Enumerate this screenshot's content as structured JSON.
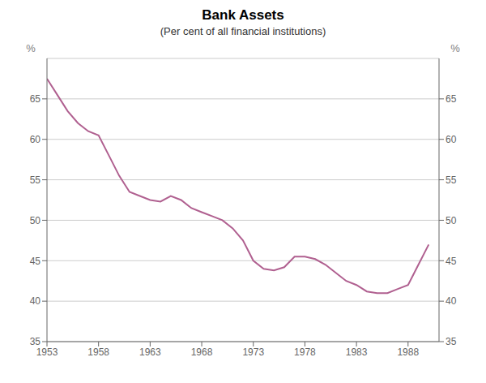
{
  "chart_data": {
    "type": "line",
    "title": "Bank Assets",
    "subtitle": "(Per cent of all financial institutions)",
    "ylabel": "%",
    "y2label": "%",
    "x": [
      1953,
      1954,
      1955,
      1956,
      1957,
      1958,
      1959,
      1960,
      1961,
      1962,
      1963,
      1964,
      1965,
      1966,
      1967,
      1968,
      1969,
      1970,
      1971,
      1972,
      1973,
      1974,
      1975,
      1976,
      1977,
      1978,
      1979,
      1980,
      1981,
      1982,
      1983,
      1984,
      1985,
      1986,
      1987,
      1988,
      1989,
      1990
    ],
    "values": [
      67.5,
      65.5,
      63.5,
      62.0,
      61.0,
      60.5,
      58.0,
      55.5,
      53.5,
      53.0,
      52.5,
      52.3,
      53.0,
      52.5,
      51.5,
      51.0,
      50.5,
      50.0,
      49.0,
      47.5,
      45.0,
      44.0,
      43.8,
      44.2,
      45.5,
      45.5,
      45.2,
      44.5,
      43.5,
      42.5,
      42.0,
      41.2,
      41.0,
      41.0,
      41.5,
      42.0,
      44.5,
      47.0
    ],
    "color": "#b06090",
    "xlim": [
      1953,
      1991
    ],
    "xticks": [
      1953,
      1958,
      1963,
      1968,
      1973,
      1978,
      1983,
      1988
    ],
    "ylim": [
      35,
      70
    ],
    "yticks": [
      35,
      40,
      45,
      50,
      55,
      60,
      65
    ],
    "y2lim": [
      35,
      70
    ],
    "y2ticks": [
      35,
      40,
      45,
      50,
      55,
      60,
      65
    ],
    "grid": true
  }
}
